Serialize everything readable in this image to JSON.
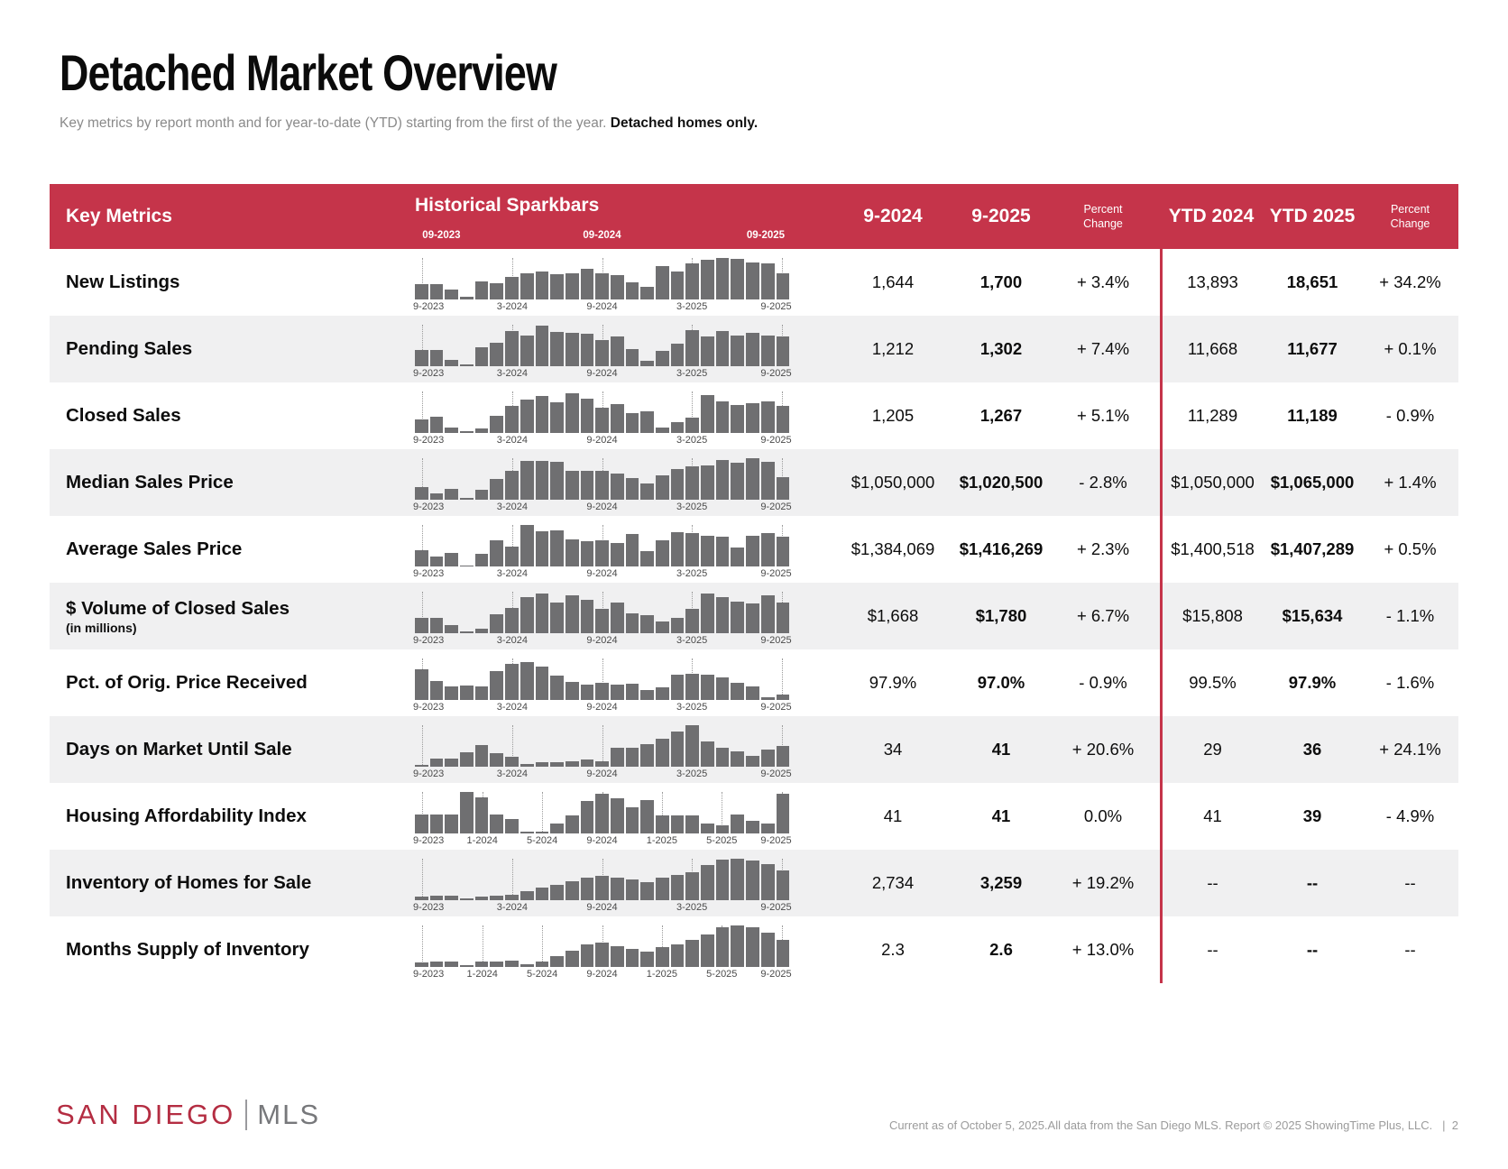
{
  "page": {
    "title": "Detached Market Overview",
    "subtitle": "Key metrics by report month and for year-to-date (YTD) starting from the first of the year.",
    "subtitle_bold": "Detached homes only.",
    "logo": {
      "part1": "SAN DIEGO",
      "part2": "MLS"
    },
    "footer_note": "Current as of October 5, 2025.All data from the San Diego MLS. Report © 2025 ShowingTime Plus, LLC.",
    "footer_sep": "|",
    "page_number": "2"
  },
  "colors": {
    "header_red": "#C5344A",
    "divider_red": "#C5344A",
    "bar_gray": "#6F6F71",
    "row_alt_gray": "#F0F0F1",
    "logo_red": "#B42D42",
    "logo_gray": "#77787B"
  },
  "table": {
    "header": {
      "key_metrics": "Key Metrics",
      "sparkbars_title": "Historical Sparkbars",
      "sparkbar_sublabels": [
        "09-2023",
        "09-2024",
        "09-2025"
      ],
      "columns": [
        "9-2024",
        "9-2025",
        "Percent Change",
        "YTD 2024",
        "YTD 2025",
        "Percent Change"
      ]
    },
    "rows": [
      {
        "label": "New Listings",
        "axis": [
          "9-2023",
          "3-2024",
          "9-2024",
          "3-2025",
          "9-2025"
        ],
        "bars": [
          0.36,
          0.38,
          0.25,
          0.06,
          0.44,
          0.4,
          0.55,
          0.62,
          0.68,
          0.6,
          0.64,
          0.74,
          0.64,
          0.58,
          0.42,
          0.3,
          0.8,
          0.68,
          0.88,
          0.95,
          1.0,
          0.97,
          0.9,
          0.86,
          0.62
        ],
        "values": [
          "1,644",
          "1,700",
          "+ 3.4%",
          "13,893",
          "18,651",
          "+ 34.2%"
        ]
      },
      {
        "label": "Pending Sales",
        "axis": [
          "9-2023",
          "3-2024",
          "9-2024",
          "3-2025",
          "9-2025"
        ],
        "bars": [
          0.4,
          0.4,
          0.16,
          0.05,
          0.46,
          0.56,
          0.84,
          0.74,
          0.97,
          0.82,
          0.8,
          0.78,
          0.64,
          0.72,
          0.42,
          0.14,
          0.36,
          0.54,
          0.86,
          0.72,
          0.84,
          0.74,
          0.8,
          0.74,
          0.72
        ],
        "values": [
          "1,212",
          "1,302",
          "+ 7.4%",
          "11,668",
          "11,677",
          "+ 0.1%"
        ]
      },
      {
        "label": "Closed Sales",
        "axis": [
          "9-2023",
          "3-2024",
          "9-2024",
          "3-2025",
          "9-2025"
        ],
        "bars": [
          0.33,
          0.4,
          0.14,
          0.04,
          0.1,
          0.42,
          0.66,
          0.8,
          0.9,
          0.74,
          0.95,
          0.82,
          0.6,
          0.7,
          0.48,
          0.52,
          0.14,
          0.26,
          0.38,
          0.92,
          0.76,
          0.68,
          0.72,
          0.76,
          0.66
        ],
        "values": [
          "1,205",
          "1,267",
          "+ 5.1%",
          "11,289",
          "11,189",
          "- 0.9%"
        ]
      },
      {
        "label": "Median Sales Price",
        "axis": [
          "9-2023",
          "3-2024",
          "9-2024",
          "3-2025",
          "9-2025"
        ],
        "bars": [
          0.3,
          0.16,
          0.27,
          0.05,
          0.24,
          0.5,
          0.7,
          0.94,
          0.94,
          0.92,
          0.7,
          0.7,
          0.7,
          0.64,
          0.52,
          0.4,
          0.58,
          0.74,
          0.8,
          0.82,
          0.96,
          0.9,
          1.0,
          0.92,
          0.55
        ],
        "values": [
          "$1,050,000",
          "$1,020,500",
          "- 2.8%",
          "$1,050,000",
          "$1,065,000",
          "+ 1.4%"
        ]
      },
      {
        "label": "Average Sales Price",
        "axis": [
          "9-2023",
          "3-2024",
          "9-2024",
          "3-2025",
          "9-2025"
        ],
        "bars": [
          0.4,
          0.24,
          0.32,
          0.03,
          0.3,
          0.62,
          0.48,
          1.0,
          0.84,
          0.88,
          0.66,
          0.6,
          0.62,
          0.57,
          0.78,
          0.38,
          0.64,
          0.82,
          0.8,
          0.74,
          0.72,
          0.45,
          0.74,
          0.8,
          0.72
        ],
        "values": [
          "$1,384,069",
          "$1,416,269",
          "+ 2.3%",
          "$1,400,518",
          "$1,407,289",
          "+ 0.5%"
        ]
      },
      {
        "label": "$ Volume of Closed Sales",
        "sublabel": "(in millions)",
        "axis": [
          "9-2023",
          "3-2024",
          "9-2024",
          "3-2025",
          "9-2025"
        ],
        "bars": [
          0.36,
          0.36,
          0.19,
          0.05,
          0.1,
          0.46,
          0.6,
          0.88,
          0.96,
          0.74,
          0.92,
          0.8,
          0.58,
          0.74,
          0.48,
          0.44,
          0.28,
          0.38,
          0.58,
          0.96,
          0.86,
          0.76,
          0.72,
          0.92,
          0.74
        ],
        "values": [
          "$1,668",
          "$1,780",
          "+ 6.7%",
          "$15,808",
          "$15,634",
          "- 1.1%"
        ]
      },
      {
        "label": "Pct. of Orig. Price Received",
        "axis": [
          "9-2023",
          "3-2024",
          "9-2024",
          "3-2025",
          "9-2025"
        ],
        "bars": [
          0.75,
          0.46,
          0.32,
          0.35,
          0.32,
          0.7,
          0.88,
          0.92,
          0.8,
          0.58,
          0.44,
          0.36,
          0.42,
          0.37,
          0.4,
          0.24,
          0.3,
          0.6,
          0.63,
          0.6,
          0.55,
          0.42,
          0.32,
          0.06,
          0.12
        ],
        "values": [
          "97.9%",
          "97.0%",
          "- 0.9%",
          "99.5%",
          "97.9%",
          "- 1.6%"
        ]
      },
      {
        "label": "Days on Market Until Sale",
        "axis": [
          "9-2023",
          "3-2024",
          "9-2024",
          "3-2025",
          "9-2025"
        ],
        "bars": [
          0.05,
          0.2,
          0.19,
          0.35,
          0.52,
          0.33,
          0.25,
          0.06,
          0.1,
          0.1,
          0.12,
          0.17,
          0.14,
          0.46,
          0.46,
          0.55,
          0.68,
          0.85,
          1.0,
          0.6,
          0.46,
          0.38,
          0.26,
          0.42,
          0.5
        ],
        "values": [
          "34",
          "41",
          "+ 20.6%",
          "29",
          "36",
          "+ 24.1%"
        ]
      },
      {
        "label": "Housing Affordability Index",
        "axis": [
          "9-2023",
          "1-2024",
          "5-2024",
          "9-2024",
          "1-2025",
          "5-2025",
          "9-2025"
        ],
        "bars": [
          0.46,
          0.46,
          0.46,
          1.0,
          0.88,
          0.46,
          0.34,
          0.04,
          0.04,
          0.24,
          0.44,
          0.78,
          0.96,
          0.84,
          0.64,
          0.8,
          0.44,
          0.44,
          0.44,
          0.24,
          0.2,
          0.46,
          0.3,
          0.24,
          0.96
        ],
        "values": [
          "41",
          "41",
          "0.0%",
          "41",
          "39",
          "- 4.9%"
        ]
      },
      {
        "label": "Inventory of Homes for Sale",
        "axis": [
          "9-2023",
          "3-2024",
          "9-2024",
          "3-2025",
          "9-2025"
        ],
        "bars": [
          0.09,
          0.11,
          0.11,
          0.04,
          0.09,
          0.11,
          0.13,
          0.22,
          0.3,
          0.38,
          0.45,
          0.55,
          0.58,
          0.55,
          0.5,
          0.43,
          0.55,
          0.6,
          0.68,
          0.85,
          0.97,
          1.0,
          0.95,
          0.88,
          0.72
        ],
        "values": [
          "2,734",
          "3,259",
          "+ 19.2%",
          "--",
          "--",
          "--"
        ]
      },
      {
        "label": "Months Supply of Inventory",
        "axis": [
          "9-2023",
          "1-2024",
          "5-2024",
          "9-2024",
          "1-2025",
          "5-2025",
          "9-2025"
        ],
        "bars": [
          0.11,
          0.13,
          0.14,
          0.05,
          0.13,
          0.14,
          0.16,
          0.06,
          0.14,
          0.27,
          0.4,
          0.55,
          0.58,
          0.5,
          0.44,
          0.37,
          0.48,
          0.55,
          0.65,
          0.78,
          0.95,
          1.0,
          0.95,
          0.82,
          0.66
        ],
        "values": [
          "2.3",
          "2.6",
          "+ 13.0%",
          "--",
          "--",
          "--"
        ]
      }
    ]
  }
}
